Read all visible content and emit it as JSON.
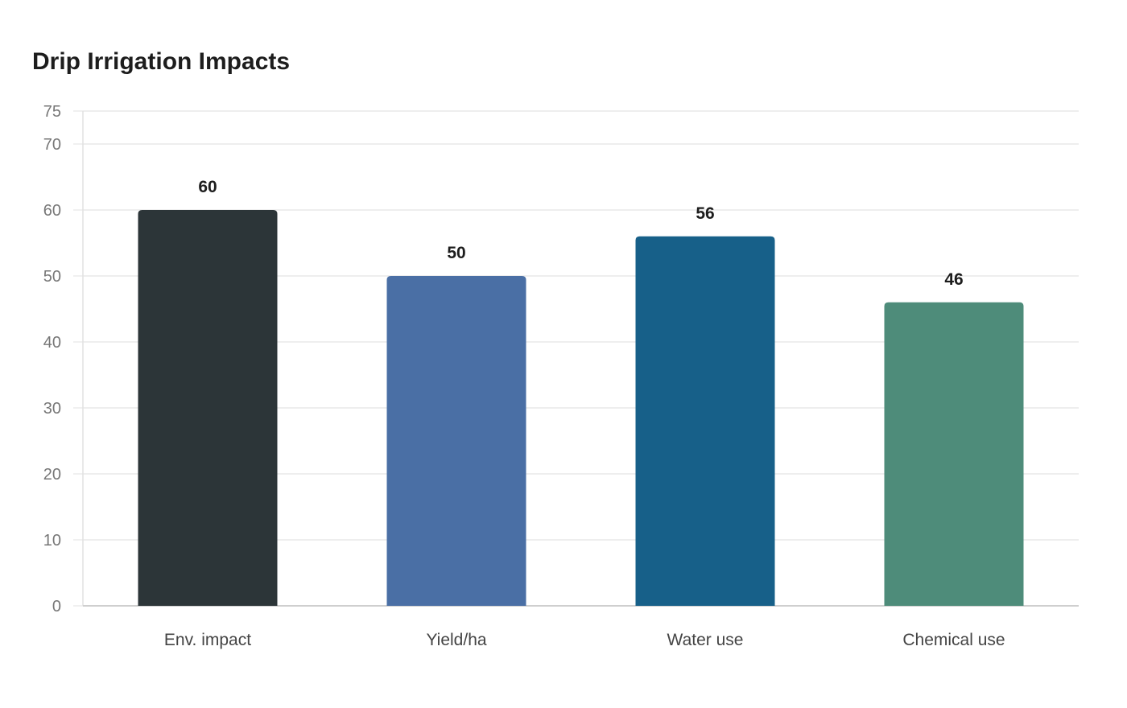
{
  "chart_data": {
    "type": "bar",
    "title": "Drip Irrigation Impacts",
    "xlabel": "",
    "ylabel": "",
    "categories": [
      "Env. impact",
      "Yield/ha",
      "Water use",
      "Chemical use"
    ],
    "values": [
      60,
      50,
      56,
      46
    ],
    "value_labels": [
      "60",
      "50",
      "56",
      "46"
    ],
    "colors": [
      "#2c3538",
      "#4a6fa5",
      "#176089",
      "#4e8c7a"
    ],
    "ylim": [
      0,
      75
    ],
    "yticks": [
      0,
      10,
      20,
      30,
      40,
      50,
      60,
      70,
      75
    ],
    "ytick_labels": [
      "0",
      "10",
      "20",
      "30",
      "40",
      "50",
      "60",
      "70",
      "75"
    ],
    "grid": true,
    "legend": "none"
  }
}
